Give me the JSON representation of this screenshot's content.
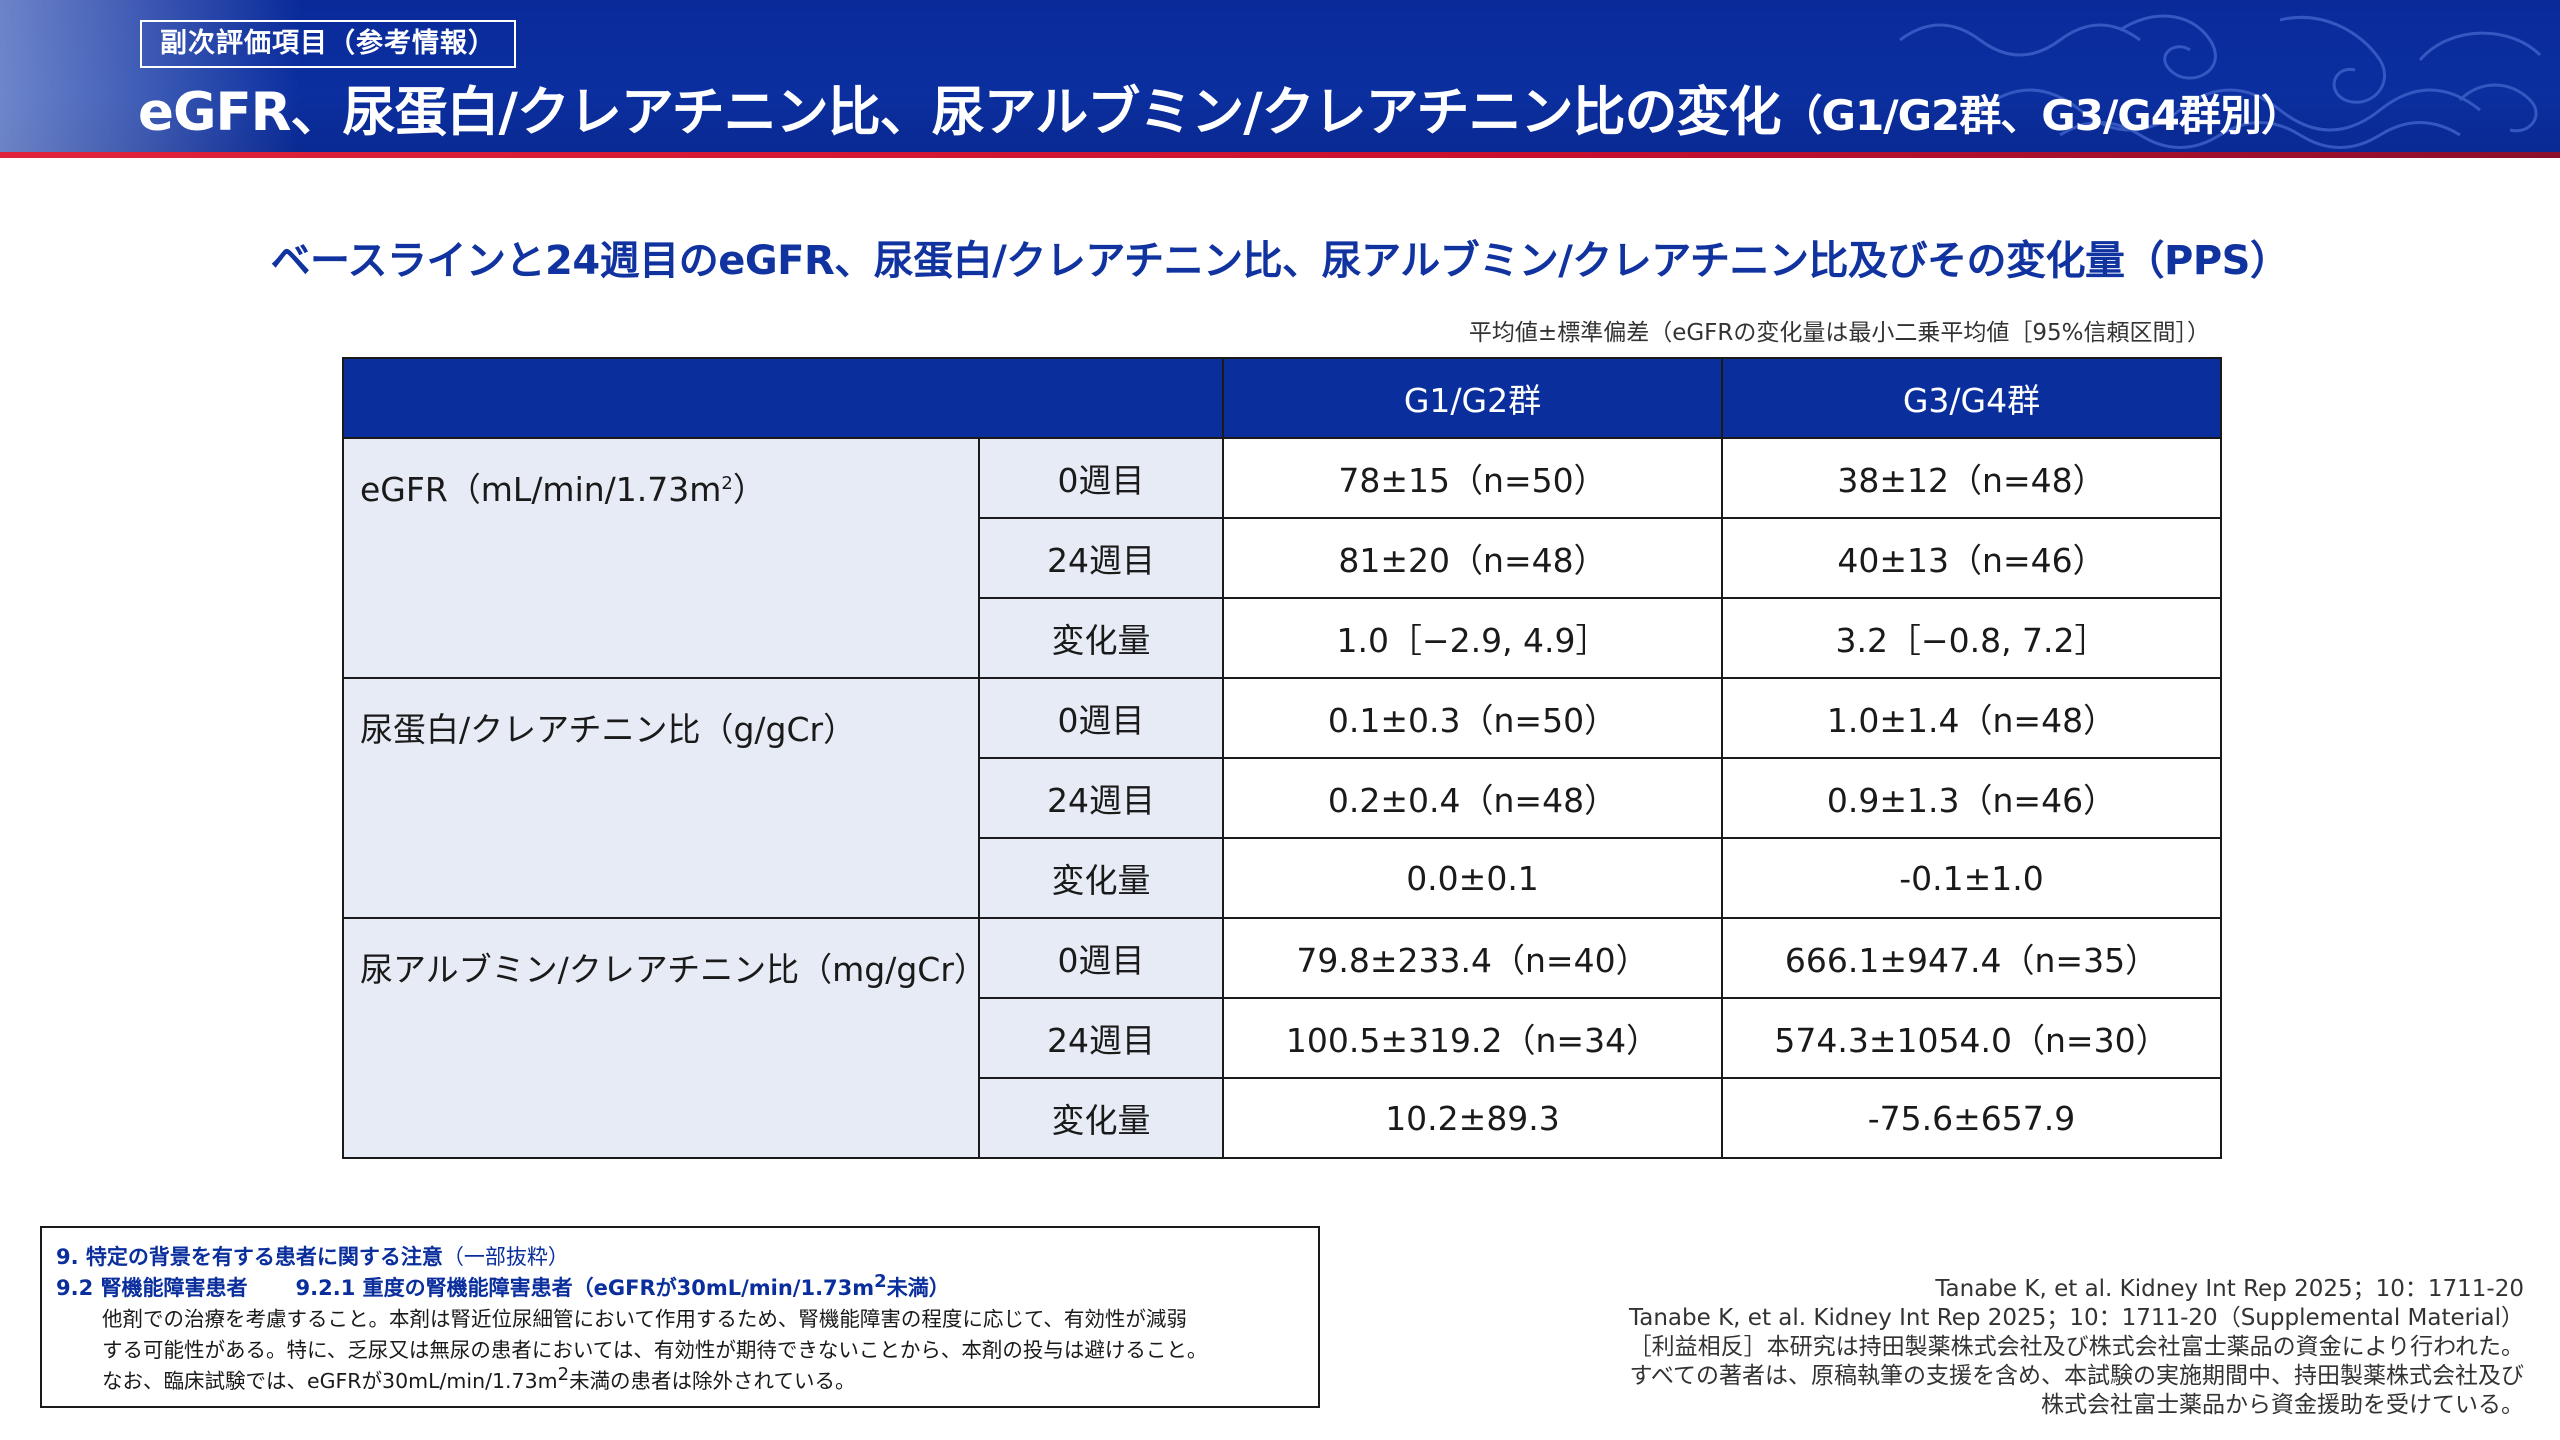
{
  "header": {
    "badge": "副次評価項目（参考情報）",
    "title_main": "eGFR、尿蛋白/クレアチニン比、尿アルブミン/クレアチニン比の変化",
    "title_paren": "（G1/G2群、G3/G4群別）"
  },
  "subtitle": "ベースラインと24週目のeGFR、尿蛋白/クレアチニン比、尿アルブミン/クレアチニン比及びその変化量（PPS）",
  "note": "平均値±標準偏差（eGFRの変化量は最小二乗平均値［95%信頼区間］）",
  "table": {
    "headers": [
      "",
      "G1/G2群",
      "G3/G4群"
    ],
    "time_labels": [
      "0週目",
      "24週目",
      "変化量"
    ],
    "categories": [
      {
        "label": "eGFR（mL/min/1.73m",
        "label_sup": "2",
        "label_end": "）",
        "rows": [
          [
            "78±15（n=50）",
            "38±12（n=48）"
          ],
          [
            "81±20（n=48）",
            "40±13（n=46）"
          ],
          [
            "1.0［−2.9, 4.9］",
            "3.2［−0.8, 7.2］"
          ]
        ]
      },
      {
        "label": "尿蛋白/クレアチニン比（g/gCr）",
        "rows": [
          [
            "0.1±0.3（n=50）",
            "1.0±1.4（n=48）"
          ],
          [
            "0.2±0.4（n=48）",
            "0.9±1.3（n=46）"
          ],
          [
            "0.0±0.1",
            "-0.1±1.0"
          ]
        ]
      },
      {
        "label": "尿アルブミン/クレアチニン比（mg/gCr）",
        "rows": [
          [
            "79.8±233.4（n=40）",
            "666.1±947.4（n=35）"
          ],
          [
            "100.5±319.2（n=34）",
            "574.3±1054.0（n=30）"
          ],
          [
            "10.2±89.3",
            "-75.6±657.9"
          ]
        ]
      }
    ]
  },
  "warning": {
    "heading": "9. 特定の背景を有する患者に関する注意",
    "heading_note": "（一部抜粋）",
    "sub_a": "9.2 腎機能障害患者",
    "sub_b": "9.2.1 重度の腎機能障害患者（eGFRが30mL/min/1.73m",
    "sub_b_sup": "2",
    "sub_b_end": "未満）",
    "line1": "他剤での治療を考慮すること。本剤は腎近位尿細管において作用するため、腎機能障害の程度に応じて、有効性が減弱",
    "line2": "する可能性がある。特に、乏尿又は無尿の患者においては、有効性が期待できないことから、本剤の投与は避けること。",
    "line3": "なお、臨床試験では、eGFRが30mL/min/1.73m",
    "line3_sup": "2",
    "line3_end": "未満の患者は除外されている。"
  },
  "references": [
    "Tanabe K, et al. Kidney Int Rep 2025；10：1711-20",
    "Tanabe K, et al. Kidney Int Rep 2025；10：1711-20（Supplemental Material）",
    "［利益相反］本研究は持田製薬株式会社及び株式会社富士薬品の資金により行われた。",
    "すべての著者は、原稿執筆の支援を含め、本試験の実施期間中、持田製薬株式会社及び",
    "株式会社富士薬品から資金援助を受けている。"
  ]
}
